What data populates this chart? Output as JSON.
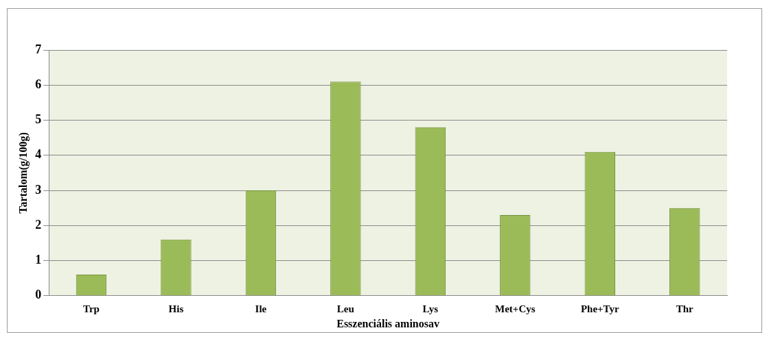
{
  "chart_data": {
    "type": "bar",
    "xlabel": "Esszenciális aminosav",
    "ylabel": "Tartalom(g/100g)",
    "categories": [
      "Trp",
      "His",
      "Ile",
      "Leu",
      "Lys",
      "Met+Cys",
      "Phe+Tyr",
      "Thr"
    ],
    "values": [
      0.6,
      1.6,
      3.0,
      6.1,
      4.8,
      2.3,
      4.1,
      2.5
    ],
    "color": "#9bbb59",
    "ylim": [
      0,
      7
    ],
    "yticks": [
      0,
      1,
      2,
      3,
      4,
      5,
      6,
      7
    ],
    "grid": "y",
    "legend": false
  }
}
